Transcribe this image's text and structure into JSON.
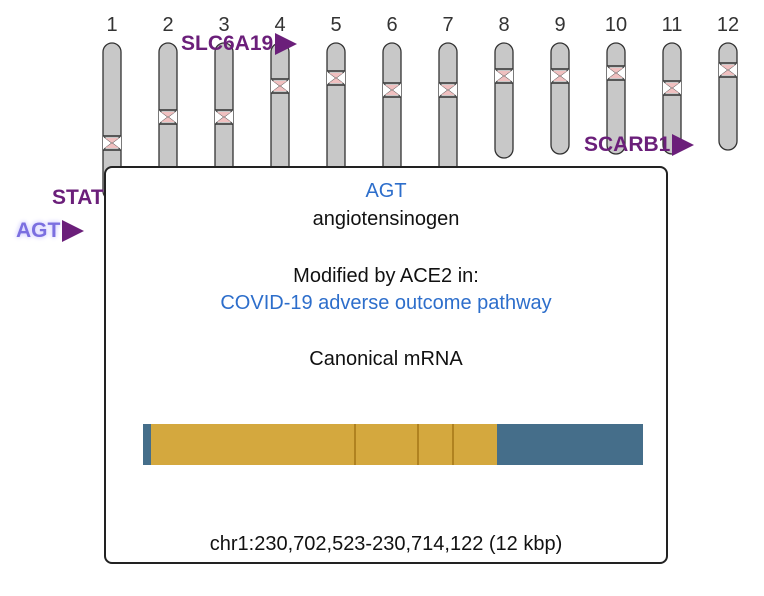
{
  "chromosomes": [
    "1",
    "2",
    "3",
    "4",
    "5",
    "6",
    "7",
    "8",
    "9",
    "10",
    "11",
    "12"
  ],
  "annotations": [
    {
      "name": "SLC6A19",
      "color": "#6b1f7a"
    },
    {
      "name": "SCARB1",
      "color": "#6b1f7a"
    },
    {
      "name": "STAT",
      "color": "#6b1f7a"
    },
    {
      "name": "AGT",
      "color": "#7b6fe0"
    }
  ],
  "tooltip": {
    "gene_symbol": "AGT",
    "gene_name": "angiotensinogen",
    "modified_text": "Modified by ACE2 in:",
    "pathway": "COVID-19 adverse outcome pathway",
    "transcript_label": "Canonical mRNA",
    "location": "chr1:230,702,523-230,714,122 (12 kbp)"
  },
  "colors": {
    "chromosome_fill": "#c8c8c8",
    "centromere": "#f0c0c0",
    "utr": "#456e8a",
    "cds": "#d4a83e",
    "link": "#2d6ecb",
    "annotation": "#6b1f7a"
  }
}
